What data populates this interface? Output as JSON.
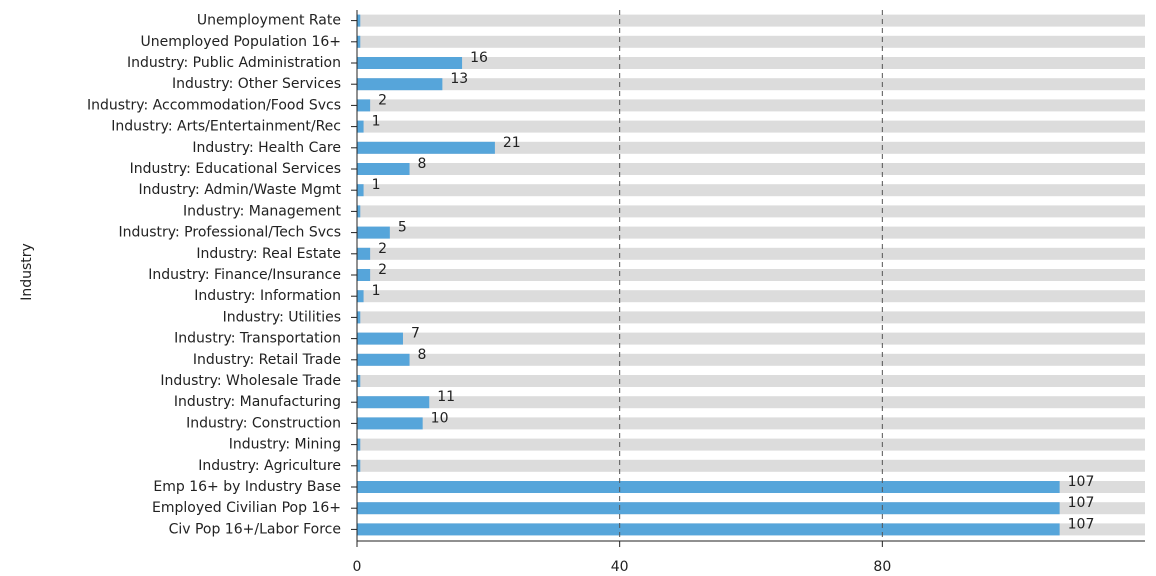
{
  "chart_data": {
    "type": "bar",
    "orientation": "horizontal",
    "y_label": "Industry",
    "categories": [
      "Unemployment Rate",
      "Unemployed Population 16+",
      "Industry: Public Administration",
      "Industry: Other Services",
      "Industry: Accommodation/Food Svcs",
      "Industry: Arts/Entertainment/Rec",
      "Industry: Health Care",
      "Industry: Educational Services",
      "Industry: Admin/Waste Mgmt",
      "Industry: Management",
      "Industry: Professional/Tech Svcs",
      "Industry: Real Estate",
      "Industry: Finance/Insurance",
      "Industry: Information",
      "Industry: Utilities",
      "Industry: Transportation",
      "Industry: Retail Trade",
      "Industry: Wholesale Trade",
      "Industry: Manufacturing",
      "Industry: Construction",
      "Industry: Mining",
      "Industry: Agriculture",
      "Emp 16+ by Industry Base",
      "Employed Civilian Pop 16+",
      "Civ Pop 16+/Labor Force"
    ],
    "values": [
      0.5,
      0.5,
      16,
      13,
      2,
      1,
      21,
      8,
      1,
      0.5,
      5,
      2,
      2,
      1,
      0.5,
      7,
      8,
      0.5,
      11,
      10,
      0.5,
      0.5,
      107,
      107,
      107
    ],
    "value_labels": [
      null,
      null,
      "16",
      "13",
      "2",
      "1",
      "21",
      "8",
      "1",
      null,
      "5",
      "2",
      "2",
      "1",
      null,
      "7",
      "8",
      null,
      "11",
      "10",
      null,
      null,
      "107",
      "107",
      "107"
    ],
    "color": "#56a5da",
    "track_color": "#dcdcdc",
    "xlim": [
      0,
      120
    ],
    "xticks": [
      0,
      40,
      80
    ],
    "grid": true
  }
}
